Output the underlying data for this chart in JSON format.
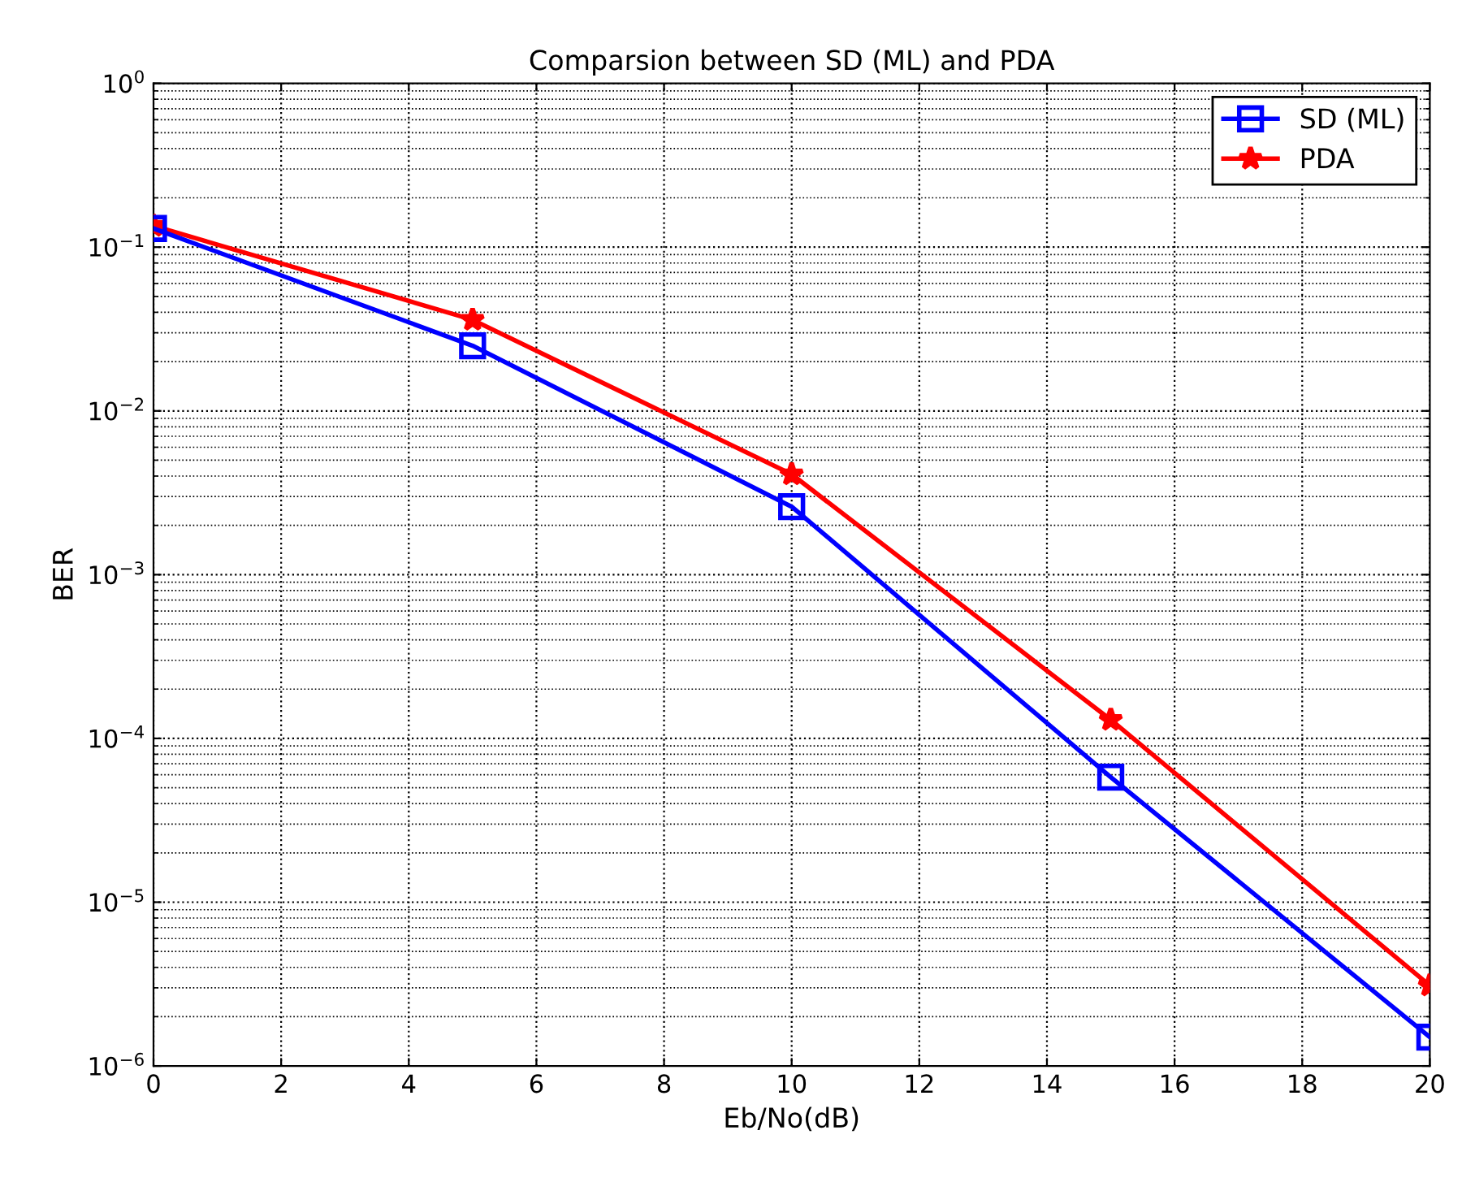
{
  "chart_data": {
    "type": "line",
    "title": "Comparsion between SD (ML) and PDA",
    "xlabel": "Eb/No(dB)",
    "ylabel": "BER",
    "x": [
      0,
      5,
      10,
      15,
      20
    ],
    "series": [
      {
        "name": "SD (ML)",
        "color": "#0000ff",
        "marker": "square",
        "values": [
          0.13,
          0.025,
          0.0026,
          5.8e-05,
          1.5e-06
        ]
      },
      {
        "name": "PDA",
        "color": "#ff0000",
        "marker": "star",
        "values": [
          0.135,
          0.036,
          0.0041,
          0.00013,
          3.1e-06
        ]
      }
    ],
    "log": "y",
    "xlim": [
      0,
      20
    ],
    "xticks": [
      0,
      2,
      4,
      6,
      8,
      10,
      12,
      14,
      16,
      18,
      20
    ],
    "ylim": [
      1e-06,
      1
    ],
    "yticks": [
      {
        "value": 1e-06,
        "label": "10$^{−6}$"
      },
      {
        "value": 1e-05,
        "label": "10$^{−5}$"
      },
      {
        "value": 0.0001,
        "label": "10$^{−4}$"
      },
      {
        "value": 0.001,
        "label": "10$^{−3}$"
      },
      {
        "value": 0.01,
        "label": "10$^{−2}$"
      },
      {
        "value": 0.1,
        "label": "10$^{−1}$"
      },
      {
        "value": 1,
        "label": "10$^{0}$"
      }
    ],
    "grid": true,
    "legend": "top right",
    "line_style": "solid"
  }
}
